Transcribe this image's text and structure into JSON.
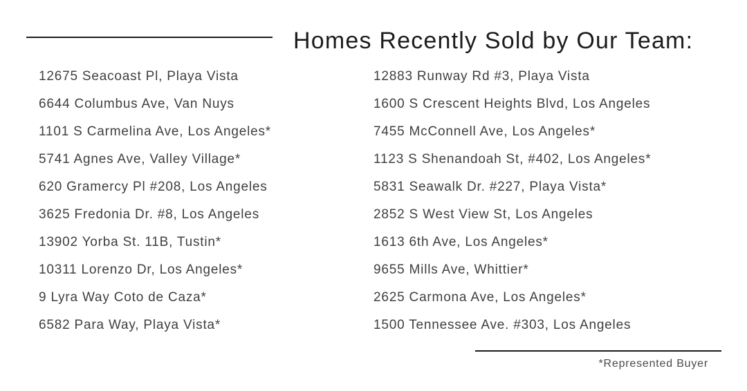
{
  "title": "Homes Recently Sold by Our Team:",
  "left_column": [
    "12675 Seacoast Pl, Playa Vista",
    "6644 Columbus Ave, Van Nuys",
    "1101 S Carmelina Ave, Los Angeles*",
    "5741 Agnes Ave, Valley Village*",
    "620 Gramercy Pl #208, Los Angeles",
    "3625 Fredonia Dr. #8, Los Angeles",
    "13902 Yorba St. 11B, Tustin*",
    "10311 Lorenzo Dr, Los Angeles*",
    "9 Lyra Way Coto de Caza*",
    "6582 Para Way, Playa Vista*"
  ],
  "right_column": [
    "12883 Runway Rd #3, Playa Vista",
    "1600 S Crescent Heights Blvd, Los Angeles",
    "7455 McConnell Ave, Los Angeles*",
    "1123 S Shenandoah St, #402, Los Angeles*",
    "5831 Seawalk Dr. #227, Playa Vista*",
    "2852 S West View St, Los Angeles",
    "1613 6th Ave, Los Angeles*",
    "9655 Mills Ave, Whittier*",
    "2625 Carmona Ave, Los Angeles*",
    "1500 Tennessee Ave. #303, Los Angeles"
  ],
  "footnote": "*Represented Buyer",
  "colors": {
    "background": "#ffffff",
    "title_text": "#1c1c1c",
    "address_text": "#3f3f3f",
    "footnote_text": "#4a4a4a",
    "rule": "#1a1a1a"
  }
}
